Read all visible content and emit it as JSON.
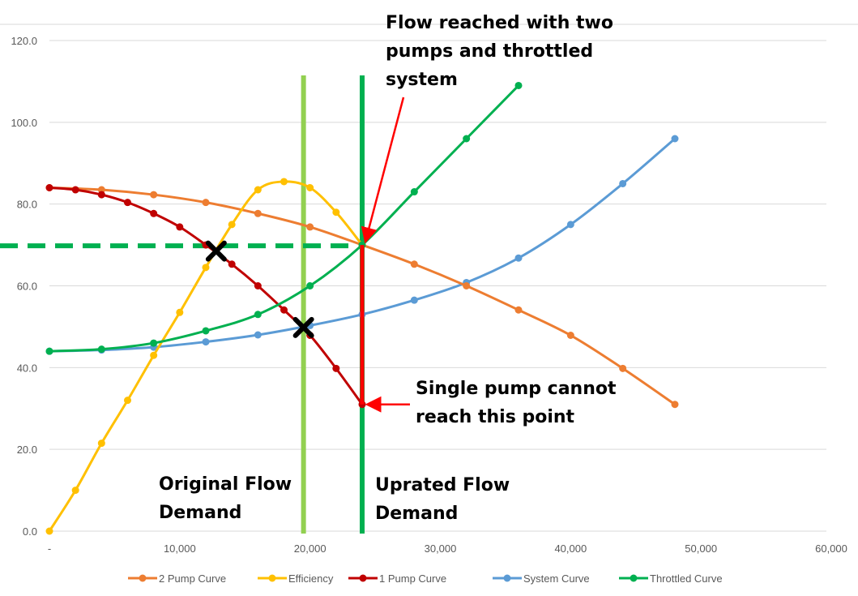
{
  "chart_data": {
    "type": "line",
    "title": "",
    "xlabel": "",
    "ylabel": "",
    "xlim": [
      0,
      60000
    ],
    "ylim": [
      0,
      120
    ],
    "x_ticks": [
      0,
      10000,
      20000,
      30000,
      40000,
      50000,
      60000
    ],
    "x_tick_labels": [
      "-",
      "10,000",
      "20,000",
      "30,000",
      "40,000",
      "50,000",
      "60,000"
    ],
    "y_ticks": [
      0,
      20,
      40,
      60,
      80,
      100,
      120
    ],
    "y_tick_labels": [
      "0.0",
      "20.0",
      "40.0",
      "60.0",
      "80.0",
      "100.0",
      "120.0"
    ],
    "grid": "horizontal",
    "legend_position": "bottom",
    "series": [
      {
        "name": "2 Pump Curve",
        "color": "#ED7D31",
        "x": [
          0,
          4000,
          8000,
          12000,
          16000,
          20000,
          24000,
          28000,
          32000,
          36000,
          40000,
          44000,
          48000
        ],
        "y": [
          84.0,
          83.5,
          82.3,
          80.4,
          77.7,
          74.4,
          70.0,
          65.3,
          60.0,
          54.1,
          47.9,
          39.8,
          31.0
        ]
      },
      {
        "name": "Efficiency",
        "color": "#FFC000",
        "x": [
          0,
          2000,
          4000,
          6000,
          8000,
          10000,
          12000,
          14000,
          16000,
          18000,
          20000,
          22000,
          24000
        ],
        "y": [
          0,
          10.0,
          21.5,
          32.0,
          43.0,
          53.5,
          64.5,
          75.0,
          83.5,
          85.5,
          84.0,
          78.0,
          70.0
        ]
      },
      {
        "name": "1 Pump Curve",
        "color": "#C00000",
        "x": [
          0,
          2000,
          4000,
          6000,
          8000,
          10000,
          12000,
          14000,
          16000,
          18000,
          20000,
          22000,
          24000
        ],
        "y": [
          84.0,
          83.5,
          82.3,
          80.4,
          77.7,
          74.4,
          70.0,
          65.3,
          60.0,
          54.1,
          47.9,
          39.8,
          31.0
        ]
      },
      {
        "name": "System Curve",
        "color": "#5B9BD5",
        "x": [
          0,
          4000,
          8000,
          12000,
          16000,
          20000,
          24000,
          28000,
          32000,
          36000,
          40000,
          44000,
          48000
        ],
        "y": [
          44.0,
          44.3,
          45.0,
          46.3,
          48.0,
          50.3,
          53.0,
          56.5,
          60.8,
          66.8,
          75.0,
          85.0,
          96.0
        ]
      },
      {
        "name": "Throttled Curve",
        "color": "#00B050",
        "x": [
          0,
          4000,
          8000,
          12000,
          16000,
          20000,
          24000,
          28000,
          32000,
          36000
        ],
        "y": [
          44.0,
          44.5,
          46.0,
          49.0,
          53.0,
          60.0,
          70.0,
          83.0,
          96.0,
          109.0
        ]
      }
    ],
    "reference_lines": [
      {
        "orientation": "vertical",
        "x": 19500,
        "color": "#92D050",
        "style": "solid"
      },
      {
        "orientation": "vertical",
        "x": 24000,
        "color": "#00B050",
        "style": "solid"
      },
      {
        "orientation": "horizontal",
        "y": 69.8,
        "x_from": -4000,
        "x_to": 24000,
        "color": "#00B050",
        "style": "dashed"
      },
      {
        "orientation": "vertical-segment",
        "x": 24000,
        "y_from": 31.0,
        "y_to": 70.0,
        "color": "#FF0000",
        "style": "solid"
      }
    ],
    "markers": [
      {
        "shape": "x",
        "x": 12800,
        "y": 68.5
      },
      {
        "shape": "x",
        "x": 19500,
        "y": 49.8
      }
    ],
    "annotations": [
      {
        "lines": [
          "Flow reached with two",
          "pumps and throttled",
          "system"
        ],
        "arrow_to": {
          "x": 24000,
          "y": 70.0
        }
      },
      {
        "lines": [
          "Single pump cannot",
          "reach this point"
        ],
        "arrow_to": {
          "x": 24000,
          "y": 31.0
        }
      },
      {
        "lines": [
          "Original Flow",
          "Demand"
        ]
      },
      {
        "lines": [
          "Uprated Flow",
          "Demand"
        ]
      }
    ]
  }
}
